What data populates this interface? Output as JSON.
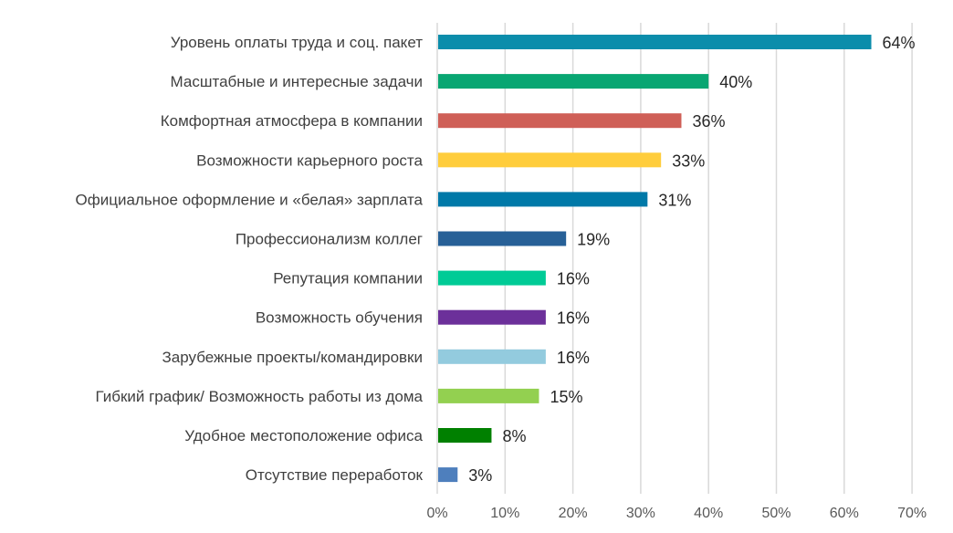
{
  "chart_data": {
    "type": "bar",
    "orientation": "horizontal",
    "title": "",
    "xlabel": "",
    "ylabel": "",
    "xlim": [
      0,
      70
    ],
    "grid": true,
    "categories": [
      "Уровень оплаты труда и соц. пакет",
      "Масштабные и интересные задачи",
      "Комфортная атмосфера в компании",
      "Возможности карьерного роста",
      "Официальное оформление и «белая» зарплата",
      "Профессионализм коллег",
      "Репутация компании",
      "Возможность обучения",
      "Зарубежные проекты/командировки",
      "Гибкий график/ Возможность работы из дома",
      "Удобное местоположение офиса",
      "Отсутствие переработок"
    ],
    "values": [
      64,
      40,
      36,
      33,
      31,
      19,
      16,
      16,
      16,
      15,
      8,
      3
    ],
    "value_labels": [
      "64%",
      "40%",
      "36%",
      "33%",
      "31%",
      "19%",
      "16%",
      "16%",
      "16%",
      "15%",
      "8%",
      "3%"
    ],
    "colors": [
      "#0b8dab",
      "#08a672",
      "#cf5f57",
      "#ffcd3c",
      "#0079a8",
      "#276097",
      "#00cb96",
      "#6c309a",
      "#93cbde",
      "#93d050",
      "#008000",
      "#4e7fbd"
    ],
    "tick_values": [
      0,
      10,
      20,
      30,
      40,
      50,
      60,
      70
    ],
    "tick_labels": [
      "0%",
      "10%",
      "20%",
      "30%",
      "40%",
      "50%",
      "60%",
      "70%"
    ]
  }
}
